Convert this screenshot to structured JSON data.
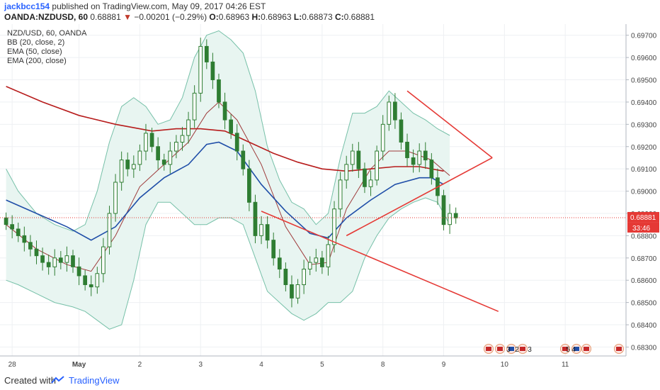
{
  "header": {
    "author": "jackbcc154",
    "published_text": "published on TradingView.com, May 09, 2017 04:26 EST",
    "symbol": "OANDA:NZDUSD, 60",
    "last": "0.68881",
    "change_arrow": "▼",
    "change": "−0.00201 (−0.29%)",
    "open_label": "O:",
    "open": "0.68963",
    "high_label": "H:",
    "high": "0.68963",
    "low_label": "L:",
    "low": "0.68873",
    "close_label": "C:",
    "close": "0.68881"
  },
  "legend": [
    "NZD/USD, 60, OANDA",
    "BB (20, close, 2)",
    "EMA (50, close)",
    "EMA (200, close)"
  ],
  "footer": {
    "created_with": "Created with",
    "brand": "TradingView"
  },
  "price_tag": {
    "price": "0.68881",
    "countdown": "33:46"
  },
  "event_badges": [
    "3",
    "2",
    "3",
    "5",
    "4"
  ],
  "colors": {
    "candle": "#2e7d32",
    "bb_band": "#76c0a8",
    "bb_fill": "#e8f5f1",
    "bb_basis": "#9e3b3b",
    "ema50": "#1f4ea8",
    "ema200": "#b71c1c",
    "trendline": "#e53935",
    "price_tag": "#e53935"
  },
  "chart_data": {
    "type": "line",
    "title": "NZD/USD, 60, OANDA",
    "ylim": [
      0.6826,
      0.6975
    ],
    "y_ticks": [
      0.697,
      0.696,
      0.695,
      0.694,
      0.693,
      0.692,
      0.691,
      0.69,
      0.689,
      0.688,
      0.687,
      0.686,
      0.685,
      0.684,
      0.683
    ],
    "y_tick_labels": [
      "0.69700",
      "0.69600",
      "0.69500",
      "0.69400",
      "0.69300",
      "0.69200",
      "0.69100",
      "0.69000",
      "0.68900",
      "0.68800",
      "0.68700",
      "0.68600",
      "0.68500",
      "0.68400",
      "0.68300"
    ],
    "x_tick_labels": [
      "28",
      "May",
      "2",
      "3",
      "4",
      "5",
      "8",
      "9",
      "10",
      "11"
    ],
    "x_ticks_bar": [
      1,
      12,
      22,
      32,
      42,
      52,
      62,
      72,
      82,
      92
    ],
    "xlim_bars": [
      -1,
      102
    ],
    "current_price": 0.68881,
    "price_series": [
      [
        0,
        0.6885
      ],
      [
        1,
        0.6883
      ],
      [
        2,
        0.688
      ],
      [
        3,
        0.6877
      ],
      [
        4,
        0.6874
      ],
      [
        5,
        0.6871
      ],
      [
        6,
        0.6868
      ],
      [
        7,
        0.6866
      ],
      [
        8,
        0.687
      ],
      [
        9,
        0.6868
      ],
      [
        10,
        0.6871
      ],
      [
        11,
        0.6866
      ],
      [
        12,
        0.6862
      ],
      [
        13,
        0.6858
      ],
      [
        14,
        0.6857
      ],
      [
        15,
        0.6863
      ],
      [
        16,
        0.6875
      ],
      [
        17,
        0.689
      ],
      [
        18,
        0.6904
      ],
      [
        19,
        0.6914
      ],
      [
        20,
        0.691
      ],
      [
        21,
        0.6912
      ],
      [
        22,
        0.6918
      ],
      [
        23,
        0.6926
      ],
      [
        24,
        0.692
      ],
      [
        25,
        0.6914
      ],
      [
        26,
        0.6912
      ],
      [
        27,
        0.6918
      ],
      [
        28,
        0.6922
      ],
      [
        29,
        0.6925
      ],
      [
        30,
        0.6932
      ],
      [
        31,
        0.6944
      ],
      [
        32,
        0.6965
      ],
      [
        33,
        0.6958
      ],
      [
        34,
        0.695
      ],
      [
        35,
        0.694
      ],
      [
        36,
        0.6932
      ],
      [
        37,
        0.6926
      ],
      [
        38,
        0.6918
      ],
      [
        39,
        0.691
      ],
      [
        40,
        0.6895
      ],
      [
        41,
        0.688
      ],
      [
        42,
        0.6885
      ],
      [
        43,
        0.6878
      ],
      [
        44,
        0.687
      ],
      [
        45,
        0.6865
      ],
      [
        46,
        0.6858
      ],
      [
        47,
        0.6852
      ],
      [
        48,
        0.6858
      ],
      [
        49,
        0.6865
      ],
      [
        50,
        0.6868
      ],
      [
        51,
        0.687
      ],
      [
        52,
        0.6866
      ],
      [
        53,
        0.6876
      ],
      [
        54,
        0.6892
      ],
      [
        55,
        0.6905
      ],
      [
        56,
        0.6912
      ],
      [
        57,
        0.6918
      ],
      [
        58,
        0.691
      ],
      [
        59,
        0.6902
      ],
      [
        60,
        0.6905
      ],
      [
        61,
        0.6918
      ],
      [
        62,
        0.693
      ],
      [
        63,
        0.694
      ],
      [
        64,
        0.6932
      ],
      [
        65,
        0.6922
      ],
      [
        66,
        0.6915
      ],
      [
        67,
        0.6912
      ],
      [
        68,
        0.6918
      ],
      [
        69,
        0.6914
      ],
      [
        70,
        0.6906
      ],
      [
        71,
        0.6898
      ],
      [
        72,
        0.6885
      ],
      [
        73,
        0.689
      ],
      [
        74,
        0.6888
      ]
    ],
    "ema50": [
      [
        0,
        0.6896
      ],
      [
        5,
        0.689
      ],
      [
        10,
        0.6884
      ],
      [
        14,
        0.6878
      ],
      [
        18,
        0.6884
      ],
      [
        22,
        0.6897
      ],
      [
        26,
        0.6906
      ],
      [
        30,
        0.6912
      ],
      [
        33,
        0.6921
      ],
      [
        35,
        0.6922
      ],
      [
        38,
        0.6918
      ],
      [
        42,
        0.6903
      ],
      [
        46,
        0.6891
      ],
      [
        50,
        0.6881
      ],
      [
        53,
        0.6879
      ],
      [
        56,
        0.6888
      ],
      [
        60,
        0.6896
      ],
      [
        64,
        0.6903
      ],
      [
        68,
        0.6906
      ],
      [
        70,
        0.6906
      ],
      [
        72,
        0.6903
      ]
    ],
    "ema200": [
      [
        0,
        0.6947
      ],
      [
        6,
        0.694
      ],
      [
        12,
        0.6934
      ],
      [
        18,
        0.693
      ],
      [
        24,
        0.6927
      ],
      [
        28,
        0.6928
      ],
      [
        32,
        0.6928
      ],
      [
        36,
        0.6927
      ],
      [
        40,
        0.6922
      ],
      [
        44,
        0.6917
      ],
      [
        48,
        0.6913
      ],
      [
        52,
        0.691
      ],
      [
        56,
        0.6909
      ],
      [
        60,
        0.691
      ],
      [
        64,
        0.6911
      ],
      [
        68,
        0.6911
      ],
      [
        72,
        0.6909
      ]
    ],
    "bb_upper": [
      [
        0,
        0.691
      ],
      [
        2,
        0.69
      ],
      [
        5,
        0.689
      ],
      [
        8,
        0.6885
      ],
      [
        11,
        0.6882
      ],
      [
        13,
        0.6885
      ],
      [
        15,
        0.69
      ],
      [
        17,
        0.6922
      ],
      [
        19,
        0.6938
      ],
      [
        21,
        0.6942
      ],
      [
        23,
        0.6938
      ],
      [
        25,
        0.693
      ],
      [
        27,
        0.6932
      ],
      [
        29,
        0.6942
      ],
      [
        31,
        0.696
      ],
      [
        33,
        0.697
      ],
      [
        35,
        0.6972
      ],
      [
        37,
        0.6968
      ],
      [
        39,
        0.6962
      ],
      [
        41,
        0.6945
      ],
      [
        43,
        0.692
      ],
      [
        45,
        0.6905
      ],
      [
        47,
        0.6895
      ],
      [
        49,
        0.6892
      ],
      [
        51,
        0.6885
      ],
      [
        53,
        0.689
      ],
      [
        55,
        0.6915
      ],
      [
        57,
        0.6935
      ],
      [
        59,
        0.6935
      ],
      [
        61,
        0.6938
      ],
      [
        63,
        0.6945
      ],
      [
        65,
        0.694
      ],
      [
        67,
        0.6935
      ],
      [
        69,
        0.6932
      ],
      [
        71,
        0.6928
      ],
      [
        73,
        0.6925
      ]
    ],
    "bb_lower": [
      [
        0,
        0.686
      ],
      [
        2,
        0.6858
      ],
      [
        5,
        0.6854
      ],
      [
        8,
        0.685
      ],
      [
        11,
        0.6848
      ],
      [
        13,
        0.6846
      ],
      [
        15,
        0.6842
      ],
      [
        17,
        0.6838
      ],
      [
        19,
        0.684
      ],
      [
        21,
        0.686
      ],
      [
        23,
        0.6885
      ],
      [
        25,
        0.6895
      ],
      [
        27,
        0.6895
      ],
      [
        29,
        0.689
      ],
      [
        31,
        0.6885
      ],
      [
        33,
        0.6885
      ],
      [
        35,
        0.6888
      ],
      [
        37,
        0.6888
      ],
      [
        39,
        0.6885
      ],
      [
        41,
        0.687
      ],
      [
        43,
        0.6855
      ],
      [
        45,
        0.685
      ],
      [
        47,
        0.6845
      ],
      [
        49,
        0.6842
      ],
      [
        51,
        0.6845
      ],
      [
        53,
        0.685
      ],
      [
        55,
        0.685
      ],
      [
        57,
        0.6855
      ],
      [
        59,
        0.687
      ],
      [
        61,
        0.688
      ],
      [
        63,
        0.6888
      ],
      [
        65,
        0.6892
      ],
      [
        67,
        0.6895
      ],
      [
        69,
        0.6897
      ],
      [
        71,
        0.6895
      ],
      [
        73,
        0.6885
      ]
    ],
    "bb_basis": [
      [
        0,
        0.6885
      ],
      [
        5,
        0.6874
      ],
      [
        10,
        0.6867
      ],
      [
        14,
        0.6864
      ],
      [
        18,
        0.688
      ],
      [
        22,
        0.6902
      ],
      [
        26,
        0.6912
      ],
      [
        30,
        0.6922
      ],
      [
        33,
        0.6935
      ],
      [
        35,
        0.694
      ],
      [
        38,
        0.6932
      ],
      [
        42,
        0.6912
      ],
      [
        46,
        0.6884
      ],
      [
        50,
        0.6867
      ],
      [
        53,
        0.6868
      ],
      [
        56,
        0.6892
      ],
      [
        60,
        0.691
      ],
      [
        63,
        0.6918
      ],
      [
        66,
        0.6918
      ],
      [
        70,
        0.6914
      ],
      [
        73,
        0.6907
      ]
    ],
    "trendlines": [
      {
        "from": [
          42,
          0.6891
        ],
        "to": [
          81,
          0.6846
        ]
      },
      {
        "from": [
          56,
          0.688
        ],
        "to": [
          80,
          0.6915
        ]
      },
      {
        "from": [
          66,
          0.6945
        ],
        "to": [
          80,
          0.6915
        ]
      }
    ]
  }
}
